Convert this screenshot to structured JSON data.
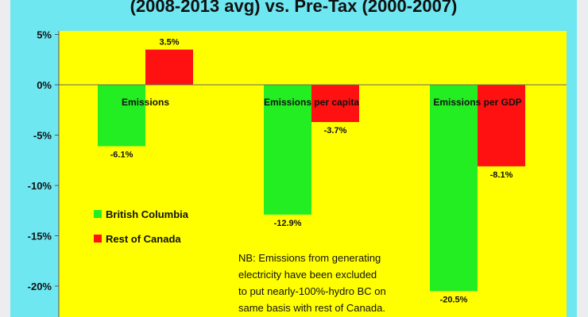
{
  "chart": {
    "title": "(2008-2013 avg) vs. Pre-Tax (2000-2007)",
    "note_lines": [
      "NB: Emissions from generating",
      "electricity have been excluded",
      "to put nearly-100%-hydro BC on",
      "same basis with rest of Canada."
    ]
  },
  "colors": {
    "plot_background": "#ffff00",
    "panel_background": "#6ee7f1",
    "british_columbia": "#22ee22",
    "rest_of_canada": "#ff1111"
  },
  "chart_data": {
    "type": "bar",
    "title": "(2008-2013 avg) vs. Pre-Tax (2000-2007)",
    "xlabel": "",
    "ylabel": "",
    "categories": [
      "Emissions",
      "Emissions per capita",
      "Emissions per GDP"
    ],
    "series": [
      {
        "name": "British Columbia",
        "values": [
          -6.1,
          -12.9,
          -20.5
        ]
      },
      {
        "name": "Rest of Canada",
        "values": [
          3.5,
          -3.7,
          -8.1
        ]
      }
    ],
    "data_labels": [
      [
        "-6.1%",
        "-12.9%",
        "-20.5%"
      ],
      [
        "3.5%",
        "-3.7%",
        "-8.1%"
      ]
    ],
    "y_ticks": [
      5,
      0,
      -5,
      -10,
      -15,
      -20
    ],
    "y_tick_labels": [
      "5%",
      "0%",
      "-5%",
      "-10%",
      "-15%",
      "-20%"
    ],
    "ylim": [
      -23,
      5
    ],
    "grid": false,
    "legend_position": "bottom-left"
  }
}
